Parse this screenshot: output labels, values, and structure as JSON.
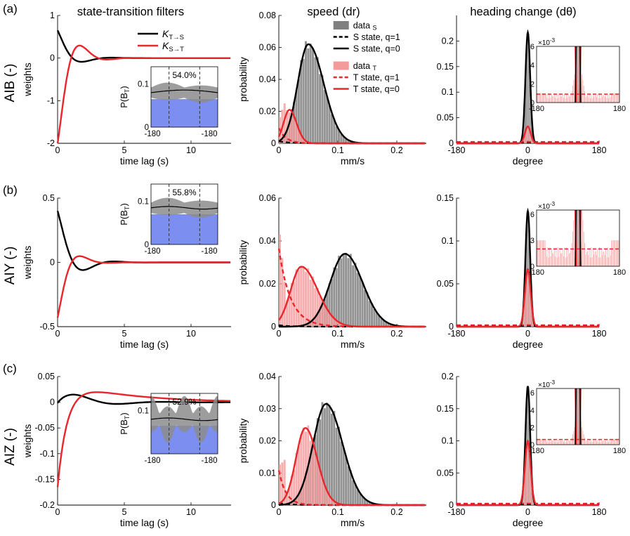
{
  "col_titles": [
    "state-transition filters",
    "speed (dr)",
    "heading change (dθ)"
  ],
  "rows": [
    {
      "panel_label": "(a)",
      "neuron": "AIB (-)"
    },
    {
      "panel_label": "(b)",
      "neuron": "AIY (-)"
    },
    {
      "panel_label": "(c)",
      "neuron": "AIZ (-)"
    }
  ],
  "labels": {
    "weights": "weights",
    "time_lag": "time lag (s)",
    "probability": "probability",
    "mms": "mm/s",
    "degree": "degree",
    "pb_main": "P(B",
    "pb_sub": "T",
    "pb_close": ")",
    "inset_exp": "×10",
    "inset_exp_power": "-3"
  },
  "legends": {
    "filter": [
      {
        "k": "K",
        "sub": "T→S",
        "color": "#000000"
      },
      {
        "k": "K",
        "sub": "S→T",
        "color": "#e8262b"
      }
    ],
    "speed": [
      {
        "text": "data",
        "sub": "S",
        "kind": "patch",
        "color": "#808080"
      },
      {
        "text": "S state, q=1",
        "kind": "dash",
        "color": "#000000"
      },
      {
        "text": "S state, q=0",
        "kind": "solid",
        "color": "#000000"
      },
      {
        "text": "data",
        "sub": "T",
        "kind": "patch",
        "color": "#f59a9a"
      },
      {
        "text": "T state, q=1",
        "kind": "dash",
        "color": "#e8262b"
      },
      {
        "text": "T state, q=0",
        "kind": "solid",
        "color": "#e8262b"
      }
    ]
  },
  "colors": {
    "black": "#000000",
    "red": "#e8262b",
    "gray": "#808080",
    "pink": "#f59a9a",
    "blue": "#7c8ff0",
    "band": "#8c8c8c"
  },
  "chart_data": [
    {
      "id": "a-filter",
      "type": "line",
      "xlim": [
        0,
        13
      ],
      "ylim": [
        -2,
        1
      ],
      "xticks": [
        0,
        5,
        10
      ],
      "yticks": [
        -2,
        -1,
        0,
        1
      ],
      "series": [
        {
          "name": "K T→S",
          "params": {
            "A": 0.65,
            "tau": 1.0,
            "w": 1.4,
            "phi": 0
          }
        },
        {
          "name": "K S→T",
          "params": {
            "A": -2.0,
            "tau": 0.95,
            "w": 1.55,
            "phi": 0
          }
        }
      ]
    },
    {
      "id": "a-inset",
      "type": "line",
      "xtick_labels": [
        "-180",
        "-180"
      ],
      "yticks": [
        0,
        0.1
      ],
      "ylim": [
        0,
        0.14
      ],
      "percent": "54.0%",
      "level": 0.08
    },
    {
      "id": "a-speed",
      "type": "bar",
      "xlim": [
        0,
        0.25
      ],
      "ylim": [
        0,
        0.08
      ],
      "xticks": [
        0,
        0.1,
        0.2
      ],
      "yticks": [
        0,
        0.02,
        0.04,
        0.06,
        0.08
      ],
      "S": {
        "peak_x": 0.05,
        "peak_y": 0.062,
        "sig_l": 0.018,
        "sig_r": 0.026
      },
      "T": {
        "peak_x": 0.018,
        "peak_y": 0.021,
        "sig_l": 0.01,
        "sig_r": 0.012
      }
    },
    {
      "id": "a-heading",
      "type": "bar",
      "xlim": [
        -180,
        180
      ],
      "ylim": [
        0,
        0.25
      ],
      "xticks": [
        -180,
        0,
        180
      ],
      "yticks": [
        0,
        0.05,
        0.1,
        0.15,
        0.2
      ],
      "S_peak": 0.217,
      "T_peak": 0.033,
      "inset_ylim": [
        0,
        6
      ],
      "inset_yticks": [
        0,
        2,
        4,
        6
      ],
      "inset_dash": 0.9
    },
    {
      "id": "b-filter",
      "type": "line",
      "xlim": [
        0,
        13
      ],
      "ylim": [
        -0.5,
        0.5
      ],
      "xticks": [
        0,
        5,
        10
      ],
      "yticks": [
        -0.5,
        0,
        0.5
      ],
      "series": [
        {
          "name": "K T→S",
          "params": {
            "A": 0.4,
            "tau": 1.1,
            "w": 1.35,
            "phi": 0
          }
        },
        {
          "name": "K S→T",
          "params": {
            "A": -0.43,
            "tau": 0.85,
            "w": 1.5,
            "phi": 0
          }
        }
      ]
    },
    {
      "id": "b-inset",
      "type": "line",
      "xtick_labels": [
        "-180",
        "-180"
      ],
      "yticks": [
        0,
        0.1
      ],
      "ylim": [
        0,
        0.14
      ],
      "percent": "55.8%",
      "level": 0.085
    },
    {
      "id": "b-speed",
      "type": "bar",
      "xlim": [
        0,
        0.25
      ],
      "ylim": [
        0,
        0.06
      ],
      "xticks": [
        0,
        0.1,
        0.2
      ],
      "yticks": [
        0,
        0.02,
        0.04,
        0.06
      ],
      "S": {
        "peak_x": 0.112,
        "peak_y": 0.034,
        "sig_l": 0.025,
        "sig_r": 0.03
      },
      "T": {
        "peak_x": 0.038,
        "peak_y": 0.028,
        "sig_l": 0.018,
        "sig_r": 0.028
      }
    },
    {
      "id": "b-heading",
      "type": "bar",
      "xlim": [
        -180,
        180
      ],
      "ylim": [
        0,
        0.15
      ],
      "xticks": [
        -180,
        0,
        180
      ],
      "yticks": [
        0,
        0.05,
        0.1,
        0.15
      ],
      "S_peak": 0.135,
      "T_peak": 0.067,
      "inset_ylim": [
        0,
        6.5
      ],
      "inset_yticks": [
        0,
        3,
        6
      ],
      "inset_dash": 2.0
    },
    {
      "id": "c-filter",
      "type": "line",
      "xlim": [
        0,
        13
      ],
      "ylim": [
        -0.2,
        0.05
      ],
      "xticks": [
        0,
        5,
        10
      ],
      "yticks": [
        -0.2,
        -0.15,
        -0.1,
        -0.05,
        0,
        0.05
      ],
      "series": [
        {
          "name": "K T→S",
          "params": {
            "A": 0.0,
            "tau": 1.4,
            "w": 1.1,
            "phi": 0
          }
        },
        {
          "name": "K S→T",
          "params": {
            "A": -0.165,
            "tau": 0.9,
            "w": 0.6,
            "phi": 0
          }
        }
      ]
    },
    {
      "id": "c-inset",
      "type": "line",
      "xtick_labels": [
        "-180",
        "-180"
      ],
      "yticks": [
        0.1
      ],
      "ylim": [
        0,
        0.14
      ],
      "percent": "52.9%",
      "level": 0.08
    },
    {
      "id": "c-speed",
      "type": "bar",
      "xlim": [
        0,
        0.25
      ],
      "ylim": [
        0,
        0.04
      ],
      "xticks": [
        0,
        0.1,
        0.2
      ],
      "yticks": [
        0,
        0.01,
        0.02,
        0.03,
        0.04
      ],
      "S": {
        "peak_x": 0.08,
        "peak_y": 0.0315,
        "sig_l": 0.022,
        "sig_r": 0.028
      },
      "T": {
        "peak_x": 0.045,
        "peak_y": 0.024,
        "sig_l": 0.016,
        "sig_r": 0.02
      }
    },
    {
      "id": "c-heading",
      "type": "bar",
      "xlim": [
        -180,
        180
      ],
      "ylim": [
        0,
        0.2
      ],
      "xticks": [
        -180,
        0,
        180
      ],
      "yticks": [
        0,
        0.05,
        0.1,
        0.15,
        0.2
      ],
      "S_peak": 0.185,
      "T_peak": 0.1,
      "inset_ylim": [
        0,
        6.5
      ],
      "inset_yticks": [
        0,
        2,
        4,
        6
      ],
      "inset_dash": 0.6
    }
  ]
}
